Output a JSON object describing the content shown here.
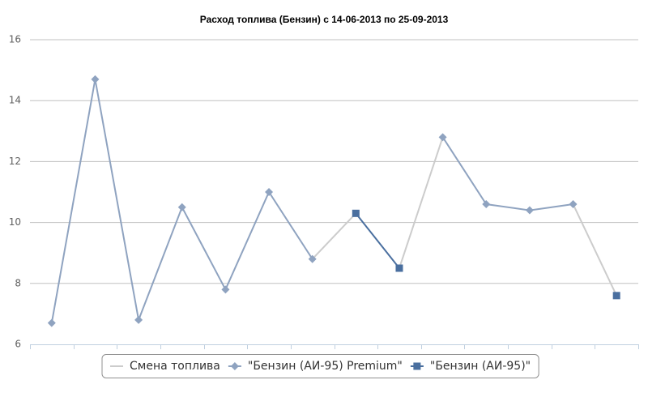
{
  "chart_data": {
    "type": "line",
    "title": "Расход топлива (Бензин) с 14-06-2013 по 25-09-2013",
    "categories": [
      null,
      null,
      null,
      null,
      null,
      null,
      null,
      null,
      null,
      null,
      null,
      null,
      null,
      null
    ],
    "series": [
      {
        "name": "Смена топлива",
        "color": "#cccccc"
      },
      {
        "name": "\"Бензин (АИ-95) Premium\"",
        "color": "#8fa3c0",
        "marker": "diamond",
        "values": [
          6.7,
          14.7,
          6.8,
          10.5,
          7.8,
          11.0,
          8.8,
          null,
          null,
          12.8,
          10.6,
          10.4,
          10.6,
          null
        ]
      },
      {
        "name": "\"Бензин (АИ-95)\"",
        "color": "#4a6f9f",
        "marker": "square",
        "values": [
          null,
          null,
          null,
          null,
          null,
          null,
          null,
          10.3,
          8.5,
          null,
          null,
          null,
          null,
          7.6
        ]
      }
    ],
    "ylim": [
      6,
      16
    ],
    "yticks": [
      6,
      8,
      10,
      12,
      14,
      16
    ],
    "grid": true,
    "legend": "bottom"
  }
}
